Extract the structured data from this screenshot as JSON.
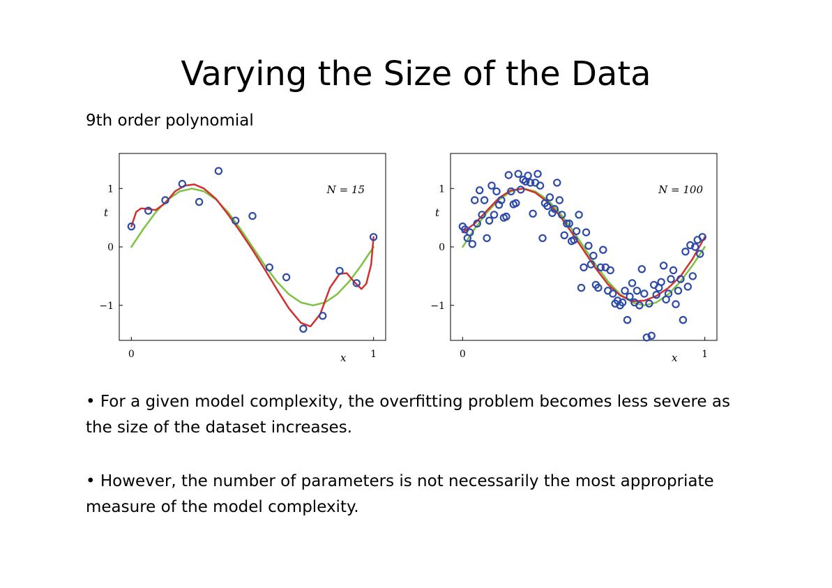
{
  "slide": {
    "title": "Varying the Size of the Data",
    "subtitle": "9th order polynomial",
    "bullets": [
      "• For a given model complexity, the overfitting problem becomes less severe as the size of the dataset increases.",
      "• However, the number of parameters is not necessarily the most appropriate measure of the model complexity."
    ]
  },
  "colors": {
    "true_function": "#7dc242",
    "fitted_polynomial": "#d32f2f",
    "data_points": "#2d4aa8"
  },
  "chart_data": [
    {
      "type": "scatter",
      "annotation": "N = 15",
      "xlabel": "x",
      "ylabel": "t",
      "xlim": [
        -0.05,
        1.05
      ],
      "ylim": [
        -1.6,
        1.6
      ],
      "xticks": [
        0,
        1
      ],
      "xtick_labels": [
        "0",
        "1"
      ],
      "yticks": [
        -1,
        0,
        1
      ],
      "ytick_labels": [
        "−1",
        "0",
        "1"
      ],
      "grid": false,
      "points": [
        [
          0.0,
          0.35
        ],
        [
          0.07,
          0.62
        ],
        [
          0.14,
          0.8
        ],
        [
          0.21,
          1.08
        ],
        [
          0.28,
          0.77
        ],
        [
          0.36,
          1.3
        ],
        [
          0.43,
          0.45
        ],
        [
          0.5,
          0.53
        ],
        [
          0.57,
          -0.35
        ],
        [
          0.64,
          -0.52
        ],
        [
          0.71,
          -1.4
        ],
        [
          0.79,
          -1.18
        ],
        [
          0.86,
          -0.41
        ],
        [
          0.93,
          -0.62
        ],
        [
          1.0,
          0.17
        ]
      ],
      "curves": [
        {
          "role": "true_function",
          "color": "#7dc242",
          "x": [
            0.0,
            0.05,
            0.1,
            0.15,
            0.2,
            0.25,
            0.3,
            0.35,
            0.4,
            0.45,
            0.5,
            0.55,
            0.6,
            0.65,
            0.7,
            0.75,
            0.8,
            0.85,
            0.9,
            0.95,
            1.0
          ],
          "y": [
            0.0,
            0.31,
            0.59,
            0.81,
            0.95,
            1.0,
            0.95,
            0.81,
            0.59,
            0.31,
            0.0,
            -0.31,
            -0.59,
            -0.81,
            -0.95,
            -1.0,
            -0.95,
            -0.81,
            -0.59,
            -0.31,
            0.0
          ]
        },
        {
          "role": "fitted_polynomial",
          "color": "#d32f2f",
          "x": [
            0.0,
            0.02,
            0.04,
            0.07,
            0.1,
            0.14,
            0.18,
            0.22,
            0.26,
            0.3,
            0.35,
            0.4,
            0.45,
            0.5,
            0.55,
            0.6,
            0.65,
            0.7,
            0.74,
            0.78,
            0.82,
            0.86,
            0.89,
            0.92,
            0.95,
            0.97,
            0.99,
            1.0
          ],
          "y": [
            0.35,
            0.6,
            0.66,
            0.65,
            0.63,
            0.75,
            0.95,
            1.05,
            1.07,
            1.0,
            0.82,
            0.55,
            0.26,
            -0.05,
            -0.38,
            -0.72,
            -1.05,
            -1.3,
            -1.36,
            -1.15,
            -0.7,
            -0.46,
            -0.45,
            -0.6,
            -0.72,
            -0.63,
            -0.3,
            0.17
          ]
        }
      ]
    },
    {
      "type": "scatter",
      "annotation": "N = 100",
      "xlabel": "x",
      "ylabel": "t",
      "xlim": [
        -0.05,
        1.05
      ],
      "ylim": [
        -1.6,
        1.6
      ],
      "xticks": [
        0,
        1
      ],
      "xtick_labels": [
        "0",
        "1"
      ],
      "yticks": [
        -1,
        0,
        1
      ],
      "ytick_labels": [
        "−1",
        "0",
        "1"
      ],
      "grid": false,
      "points": [
        [
          0.0,
          0.35
        ],
        [
          0.01,
          0.3
        ],
        [
          0.02,
          0.15
        ],
        [
          0.03,
          0.25
        ],
        [
          0.04,
          0.05
        ],
        [
          0.05,
          0.8
        ],
        [
          0.06,
          0.4
        ],
        [
          0.07,
          0.97
        ],
        [
          0.08,
          0.55
        ],
        [
          0.09,
          0.8
        ],
        [
          0.1,
          0.15
        ],
        [
          0.11,
          0.45
        ],
        [
          0.12,
          1.05
        ],
        [
          0.13,
          0.55
        ],
        [
          0.14,
          0.95
        ],
        [
          0.15,
          0.72
        ],
        [
          0.16,
          0.8
        ],
        [
          0.17,
          0.5
        ],
        [
          0.18,
          0.52
        ],
        [
          0.19,
          1.23
        ],
        [
          0.2,
          0.95
        ],
        [
          0.21,
          0.73
        ],
        [
          0.22,
          0.75
        ],
        [
          0.23,
          1.25
        ],
        [
          0.24,
          0.98
        ],
        [
          0.25,
          1.15
        ],
        [
          0.26,
          1.12
        ],
        [
          0.27,
          1.22
        ],
        [
          0.28,
          1.1
        ],
        [
          0.29,
          0.57
        ],
        [
          0.3,
          1.1
        ],
        [
          0.31,
          1.25
        ],
        [
          0.32,
          1.05
        ],
        [
          0.33,
          0.15
        ],
        [
          0.34,
          0.75
        ],
        [
          0.35,
          0.7
        ],
        [
          0.36,
          0.85
        ],
        [
          0.37,
          0.58
        ],
        [
          0.38,
          0.65
        ],
        [
          0.39,
          1.1
        ],
        [
          0.4,
          0.8
        ],
        [
          0.41,
          0.55
        ],
        [
          0.42,
          0.2
        ],
        [
          0.43,
          0.4
        ],
        [
          0.44,
          0.4
        ],
        [
          0.45,
          0.1
        ],
        [
          0.46,
          0.12
        ],
        [
          0.47,
          0.27
        ],
        [
          0.48,
          0.55
        ],
        [
          0.49,
          -0.7
        ],
        [
          0.5,
          -0.35
        ],
        [
          0.51,
          0.25
        ],
        [
          0.52,
          0.02
        ],
        [
          0.53,
          -0.3
        ],
        [
          0.54,
          -0.15
        ],
        [
          0.55,
          -0.65
        ],
        [
          0.56,
          -0.7
        ],
        [
          0.57,
          -0.35
        ],
        [
          0.58,
          -0.05
        ],
        [
          0.59,
          -0.35
        ],
        [
          0.6,
          -0.75
        ],
        [
          0.61,
          -0.4
        ],
        [
          0.62,
          -0.8
        ],
        [
          0.63,
          -0.97
        ],
        [
          0.64,
          -0.92
        ],
        [
          0.65,
          -1.0
        ],
        [
          0.66,
          -0.95
        ],
        [
          0.67,
          -0.75
        ],
        [
          0.68,
          -1.25
        ],
        [
          0.69,
          -0.85
        ],
        [
          0.7,
          -0.62
        ],
        [
          0.71,
          -0.95
        ],
        [
          0.72,
          -0.75
        ],
        [
          0.73,
          -1.0
        ],
        [
          0.74,
          -0.38
        ],
        [
          0.75,
          -0.8
        ],
        [
          0.76,
          -1.55
        ],
        [
          0.77,
          -0.97
        ],
        [
          0.78,
          -1.52
        ],
        [
          0.79,
          -0.65
        ],
        [
          0.8,
          -0.82
        ],
        [
          0.81,
          -0.7
        ],
        [
          0.82,
          -0.6
        ],
        [
          0.83,
          -0.32
        ],
        [
          0.84,
          -0.9
        ],
        [
          0.85,
          -0.8
        ],
        [
          0.86,
          -0.55
        ],
        [
          0.87,
          -0.4
        ],
        [
          0.88,
          -0.98
        ],
        [
          0.89,
          -0.75
        ],
        [
          0.9,
          -0.55
        ],
        [
          0.91,
          -1.25
        ],
        [
          0.92,
          -0.08
        ],
        [
          0.93,
          -0.68
        ],
        [
          0.94,
          0.03
        ],
        [
          0.95,
          -0.5
        ],
        [
          0.96,
          0.0
        ],
        [
          0.97,
          0.12
        ],
        [
          0.98,
          -0.12
        ],
        [
          0.99,
          0.17
        ]
      ],
      "curves": [
        {
          "role": "true_function",
          "color": "#7dc242",
          "x": [
            0.0,
            0.05,
            0.1,
            0.15,
            0.2,
            0.25,
            0.3,
            0.35,
            0.4,
            0.45,
            0.5,
            0.55,
            0.6,
            0.65,
            0.7,
            0.75,
            0.8,
            0.85,
            0.9,
            0.95,
            1.0
          ],
          "y": [
            0.0,
            0.31,
            0.59,
            0.81,
            0.95,
            1.0,
            0.95,
            0.81,
            0.59,
            0.31,
            0.0,
            -0.31,
            -0.59,
            -0.81,
            -0.95,
            -1.0,
            -0.95,
            -0.81,
            -0.59,
            -0.31,
            0.0
          ]
        },
        {
          "role": "fitted_polynomial",
          "color": "#d32f2f",
          "x": [
            0.0,
            0.05,
            0.1,
            0.15,
            0.2,
            0.25,
            0.3,
            0.35,
            0.4,
            0.45,
            0.5,
            0.55,
            0.6,
            0.65,
            0.7,
            0.75,
            0.8,
            0.85,
            0.9,
            0.95,
            1.0
          ],
          "y": [
            0.25,
            0.4,
            0.62,
            0.84,
            0.97,
            1.0,
            0.93,
            0.77,
            0.54,
            0.25,
            -0.06,
            -0.37,
            -0.64,
            -0.83,
            -0.93,
            -0.92,
            -0.84,
            -0.7,
            -0.5,
            -0.2,
            0.17
          ]
        }
      ]
    }
  ]
}
